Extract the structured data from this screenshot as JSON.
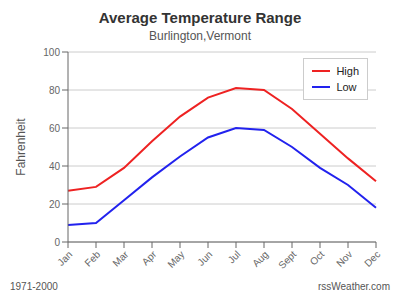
{
  "chart_data": {
    "type": "line",
    "title": "Average Temperature Range",
    "subtitle": "Burlington,Vermont",
    "ylabel": "Fahrenheit",
    "annotations": [
      "1971-2000",
      "rssWeather.com"
    ],
    "categories": [
      "Jan",
      "Feb",
      "Mar",
      "Apr",
      "May",
      "Jun",
      "Jul",
      "Aug",
      "Sept",
      "Oct",
      "Nov",
      "Dec"
    ],
    "series": [
      {
        "name": "High",
        "color": "#ee2222",
        "values": [
          27,
          29,
          39,
          53,
          66,
          76,
          81,
          80,
          70,
          57,
          44,
          32
        ]
      },
      {
        "name": "Low",
        "color": "#2222ee",
        "values": [
          9,
          10,
          22,
          34,
          45,
          55,
          60,
          59,
          50,
          39,
          30,
          18
        ]
      }
    ],
    "ylim": [
      0,
      100
    ],
    "yticks": [
      0,
      20,
      40,
      60,
      80,
      100
    ],
    "grid": true,
    "legend": "upper right"
  }
}
